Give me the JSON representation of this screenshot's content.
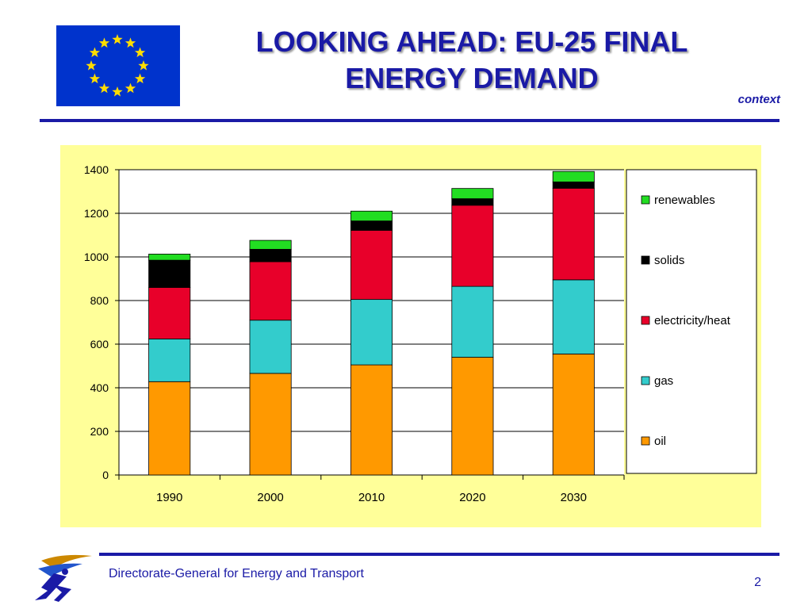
{
  "slide": {
    "title_line1": "LOOKING AHEAD: EU-25 FINAL",
    "title_line2": "ENERGY DEMAND",
    "context_label": "context",
    "footer_text": "Directorate-General for Energy and Transport",
    "page_number": "2"
  },
  "colors": {
    "title": "#1a1aa6",
    "chart_background": "#ffff99",
    "oil": "#ff9900",
    "gas": "#33cccc",
    "electricity_heat": "#e8002a",
    "solids": "#000000",
    "renewables": "#22dd22"
  },
  "icons": [
    "eu-flag-icon",
    "dg-tren-logo-icon"
  ],
  "chart_data": {
    "type": "bar",
    "stacked": true,
    "categories": [
      "1990",
      "2000",
      "2010",
      "2020",
      "2030"
    ],
    "series": [
      {
        "name": "oil",
        "color": "#ff9900",
        "values": [
          428,
          466,
          505,
          540,
          555
        ]
      },
      {
        "name": "gas",
        "color": "#33cccc",
        "values": [
          196,
          244,
          300,
          325,
          340
        ]
      },
      {
        "name": "electricity/heat",
        "color": "#e8002a",
        "values": [
          236,
          268,
          317,
          372,
          420
        ]
      },
      {
        "name": "solids",
        "color": "#000000",
        "values": [
          125,
          57,
          43,
          30,
          29
        ]
      },
      {
        "name": "renewables",
        "color": "#22dd22",
        "values": [
          28,
          41,
          45,
          47,
          48
        ]
      }
    ],
    "ylim": [
      0,
      1400
    ],
    "yticks": [
      0,
      200,
      400,
      600,
      800,
      1000,
      1200,
      1400
    ],
    "grid": true,
    "legend_position": "right",
    "legend_order": [
      "renewables",
      "solids",
      "electricity/heat",
      "gas",
      "oil"
    ],
    "title": "",
    "xlabel": "",
    "ylabel": ""
  }
}
